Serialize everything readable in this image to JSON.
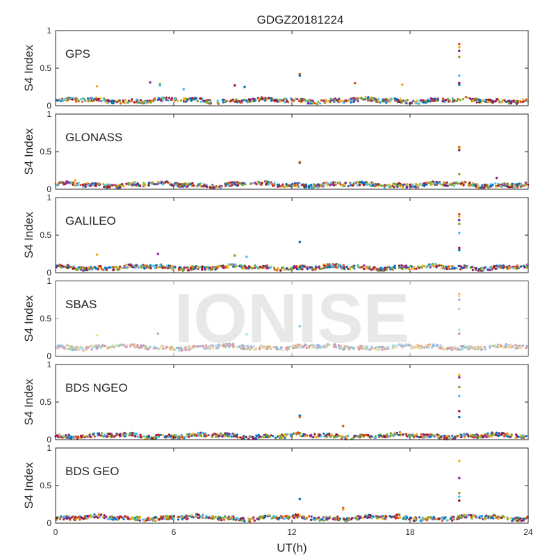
{
  "title": "GDGZ20181224",
  "watermark": "IONISE",
  "colors": {
    "series": [
      "#0072BD",
      "#D95319",
      "#EDB120",
      "#7E2F8E",
      "#77AC30",
      "#4DBEEE",
      "#A2142F"
    ],
    "axis": "#262626",
    "watermark": "#e6e6e6"
  },
  "chart_data": [
    {
      "type": "scatter",
      "panel_label": "GPS",
      "ylabel": "S4 Index",
      "xlabel": "",
      "xlim": [
        0,
        24
      ],
      "ylim": [
        0,
        1
      ],
      "x_ticks": [
        "0",
        "6",
        "12",
        "18",
        "24"
      ],
      "y_ticks": [
        "0",
        "0.5",
        "1"
      ],
      "baseline": 0.07,
      "spikes": [
        {
          "x": 12.4,
          "y": [
            0.4,
            0.42
          ]
        },
        {
          "x": 20.5,
          "y": [
            0.82,
            0.78,
            0.73,
            0.65,
            0.4,
            0.3,
            0.28
          ]
        },
        {
          "x": 2.1,
          "y": [
            0.26
          ]
        },
        {
          "x": 4.8,
          "y": [
            0.31
          ]
        },
        {
          "x": 5.3,
          "y": [
            0.29,
            0.27
          ]
        },
        {
          "x": 6.5,
          "y": [
            0.22
          ]
        },
        {
          "x": 9.1,
          "y": [
            0.27
          ]
        },
        {
          "x": 9.6,
          "y": [
            0.25
          ]
        },
        {
          "x": 15.2,
          "y": [
            0.3
          ]
        },
        {
          "x": 17.6,
          "y": [
            0.28
          ]
        }
      ]
    },
    {
      "type": "scatter",
      "panel_label": "GLONASS",
      "ylabel": "S4 Index",
      "xlabel": "",
      "xlim": [
        0,
        24
      ],
      "ylim": [
        0,
        1
      ],
      "x_ticks": [
        "0",
        "6",
        "12",
        "18",
        "24"
      ],
      "y_ticks": [
        "0",
        "0.5",
        "1"
      ],
      "baseline": 0.06,
      "spikes": [
        {
          "x": 12.4,
          "y": [
            0.35,
            0.36
          ]
        },
        {
          "x": 20.5,
          "y": [
            0.56,
            0.54,
            0.52,
            0.2
          ]
        },
        {
          "x": 1.0,
          "y": [
            0.12
          ]
        },
        {
          "x": 22.4,
          "y": [
            0.15
          ]
        }
      ]
    },
    {
      "type": "scatter",
      "panel_label": "GALILEO",
      "ylabel": "S4 Index",
      "xlabel": "",
      "xlim": [
        0,
        24
      ],
      "ylim": [
        0,
        1
      ],
      "x_ticks": [
        "0",
        "6",
        "12",
        "18",
        "24"
      ],
      "y_ticks": [
        "0",
        "0.5",
        "1"
      ],
      "baseline": 0.07,
      "spikes": [
        {
          "x": 12.4,
          "y": [
            0.41
          ]
        },
        {
          "x": 20.5,
          "y": [
            0.78,
            0.75,
            0.7,
            0.65,
            0.53,
            0.33,
            0.3
          ]
        },
        {
          "x": 2.1,
          "y": [
            0.24
          ]
        },
        {
          "x": 5.2,
          "y": [
            0.25
          ]
        },
        {
          "x": 9.1,
          "y": [
            0.23
          ]
        },
        {
          "x": 9.7,
          "y": [
            0.21
          ]
        }
      ]
    },
    {
      "type": "scatter",
      "panel_label": "SBAS",
      "ylabel": "S4 Index",
      "xlabel": "",
      "xlim": [
        0,
        24
      ],
      "ylim": [
        0,
        1
      ],
      "x_ticks": [
        "0",
        "6",
        "12",
        "18",
        "24"
      ],
      "y_ticks": [
        "0",
        "0.5",
        "1"
      ],
      "baseline": 0.12,
      "spikes": [
        {
          "x": 12.4,
          "y": [
            0.4
          ]
        },
        {
          "x": 20.5,
          "y": [
            0.83,
            0.8,
            0.75,
            0.63,
            0.35,
            0.3
          ]
        },
        {
          "x": 2.1,
          "y": [
            0.28
          ]
        },
        {
          "x": 5.2,
          "y": [
            0.3
          ]
        },
        {
          "x": 9.1,
          "y": [
            0.27
          ]
        },
        {
          "x": 9.7,
          "y": [
            0.29
          ]
        }
      ]
    },
    {
      "type": "scatter",
      "panel_label": "BDS NGEO",
      "ylabel": "S4 Index",
      "xlabel": "",
      "xlim": [
        0,
        24
      ],
      "ylim": [
        0,
        1
      ],
      "x_ticks": [
        "0",
        "6",
        "12",
        "18",
        "24"
      ],
      "y_ticks": [
        "0",
        "0.5",
        "1"
      ],
      "baseline": 0.05,
      "spikes": [
        {
          "x": 12.4,
          "y": [
            0.32,
            0.3
          ]
        },
        {
          "x": 14.6,
          "y": [
            0.18
          ]
        },
        {
          "x": 20.5,
          "y": [
            0.86,
            0.83,
            0.7,
            0.58,
            0.38,
            0.3
          ]
        }
      ]
    },
    {
      "type": "scatter",
      "panel_label": "BDS GEO",
      "ylabel": "S4 Index",
      "xlabel": "UT(h)",
      "xlim": [
        0,
        24
      ],
      "ylim": [
        0,
        1
      ],
      "x_ticks": [
        "0",
        "6",
        "12",
        "18",
        "24"
      ],
      "y_ticks": [
        "0",
        "0.5",
        "1"
      ],
      "baseline": 0.07,
      "spikes": [
        {
          "x": 12.4,
          "y": [
            0.32
          ]
        },
        {
          "x": 14.6,
          "y": [
            0.2,
            0.18
          ]
        },
        {
          "x": 20.5,
          "y": [
            0.83,
            0.6,
            0.4,
            0.35,
            0.3
          ]
        }
      ]
    }
  ]
}
